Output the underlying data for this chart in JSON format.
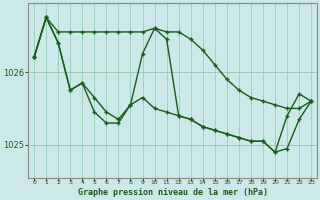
{
  "title": "Graphe pression niveau de la mer (hPa)",
  "bg_color": "#cce8e8",
  "grid_color": "#99ccbb",
  "line_color": "#1a5c1a",
  "spine_color": "#888888",
  "yticks": [
    1025,
    1026
  ],
  "ylim": [
    1024.55,
    1026.95
  ],
  "xlim": [
    -0.5,
    23.5
  ],
  "series": {
    "line_top": [
      1026.2,
      1026.75,
      1026.55,
      1026.55,
      1026.55,
      1026.55,
      1026.55,
      1026.55,
      1026.55,
      1026.55,
      1026.6,
      1026.55,
      1026.55,
      1026.45,
      1026.3,
      1026.1,
      1025.9,
      1025.75,
      1025.65,
      1025.6,
      1025.55,
      1025.5,
      1025.5,
      1025.6
    ],
    "line_mid": [
      1026.2,
      1026.75,
      1026.4,
      1025.75,
      1025.85,
      1025.65,
      1025.45,
      1025.35,
      1025.55,
      1025.65,
      1025.5,
      1025.45,
      1025.4,
      1025.35,
      1025.25,
      1025.2,
      1025.15,
      1025.1,
      1025.05,
      1025.05,
      1024.9,
      1024.95,
      1025.35,
      1025.6
    ],
    "line_bot": [
      1026.2,
      1026.75,
      1026.4,
      1025.75,
      1025.85,
      1025.45,
      1025.3,
      1025.3,
      1025.55,
      1026.25,
      1026.6,
      1026.45,
      1025.4,
      1025.35,
      1025.25,
      1025.2,
      1025.15,
      1025.1,
      1025.05,
      1025.05,
      1024.9,
      1025.4,
      1025.7,
      1025.6
    ]
  }
}
